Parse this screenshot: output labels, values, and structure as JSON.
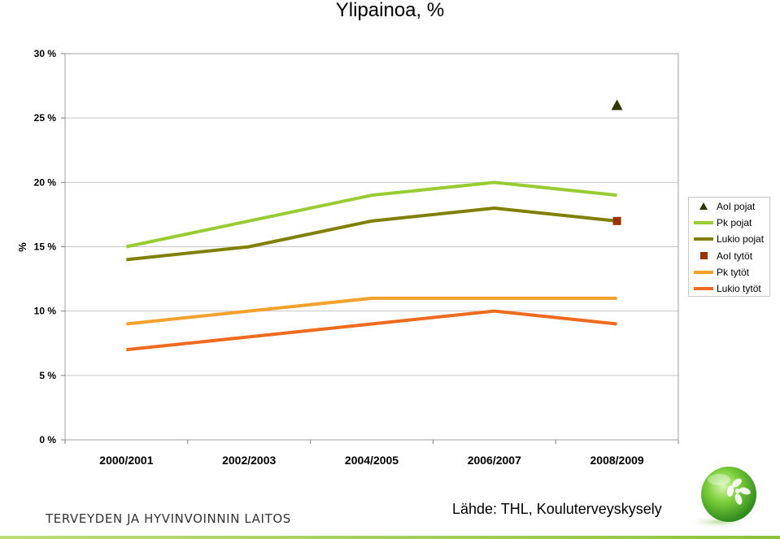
{
  "chart_data": {
    "type": "line",
    "title": "Ylipainoa, %",
    "xlabel": "",
    "ylabel": "%",
    "categories": [
      "2000/2001",
      "2002/2003",
      "2004/2005",
      "2006/2007",
      "2008/2009"
    ],
    "ylim": [
      0,
      30
    ],
    "yticks": [
      "0 %",
      "5 %",
      "10 %",
      "15 %",
      "20 %",
      "25 %",
      "30 %"
    ],
    "grid": true,
    "legend_position": "right",
    "series": [
      {
        "name": "AoI pojat",
        "marker": "triangle",
        "line": false,
        "color": "#333300",
        "values": [
          null,
          null,
          null,
          null,
          26
        ]
      },
      {
        "name": "Pk pojat",
        "marker": "none",
        "line": true,
        "color": "#99cc33",
        "values": [
          15,
          17,
          19,
          20,
          19
        ]
      },
      {
        "name": "Lukio pojat",
        "marker": "none",
        "line": true,
        "color": "#808000",
        "values": [
          14,
          15,
          17,
          18,
          17
        ]
      },
      {
        "name": "AoI tytöt",
        "marker": "square",
        "line": false,
        "color": "#993300",
        "values": [
          null,
          null,
          null,
          null,
          17
        ]
      },
      {
        "name": "Pk tytöt",
        "marker": "none",
        "line": true,
        "color": "#f2a12d",
        "values": [
          9,
          10,
          11,
          11,
          11
        ]
      },
      {
        "name": "Lukio tytöt",
        "marker": "none",
        "line": true,
        "color": "#ee6a1f",
        "values": [
          7,
          8,
          9,
          10,
          9
        ]
      }
    ]
  },
  "footer": {
    "org_name": "TERVEYDEN JA HYVINVOINNIN LAITOS",
    "source": "Lähde: THL, Kouluterveyskysely"
  }
}
